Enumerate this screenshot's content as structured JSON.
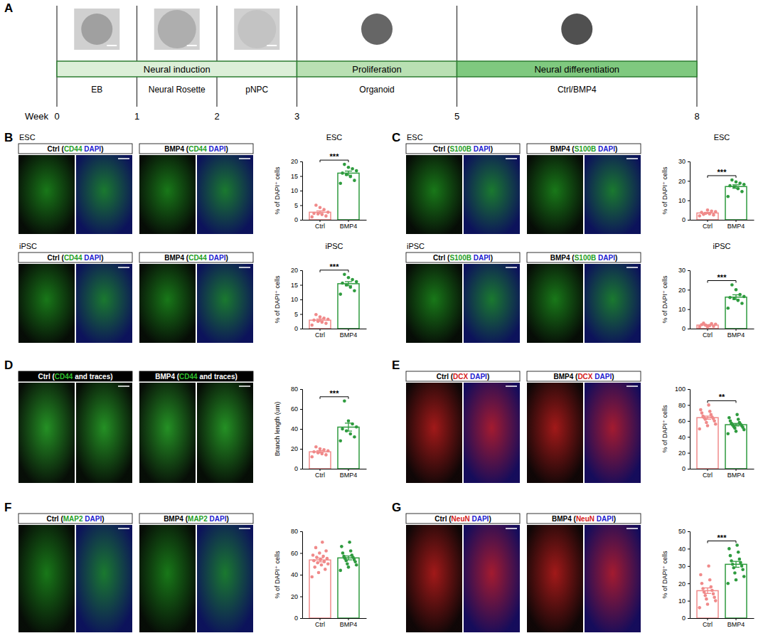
{
  "figure": {
    "timeline": {
      "panel": "A",
      "axis_label": "Week",
      "weeks": [
        0,
        1,
        2,
        3,
        5,
        8
      ],
      "xlim": [
        0,
        8
      ],
      "phases": [
        {
          "label": "Neural induction",
          "start": 0,
          "end": 3,
          "color": "#dcefd8"
        },
        {
          "label": "Proliferation",
          "start": 3,
          "end": 5,
          "color": "#b9e0b3"
        },
        {
          "label": "Neural differentiation",
          "start": 5,
          "end": 8,
          "color": "#7fc97f"
        }
      ],
      "stages": [
        {
          "label": "EB",
          "start": 0,
          "end": 1
        },
        {
          "label": "Neural Rosette",
          "start": 1,
          "end": 2
        },
        {
          "label": "pNPC",
          "start": 2,
          "end": 3
        },
        {
          "label": "Organoid",
          "start": 3,
          "end": 5
        },
        {
          "label": "Ctrl/BMP4",
          "start": 5,
          "end": 8
        }
      ]
    },
    "image_rows": [
      {
        "panel": "B",
        "label": "ESC",
        "headers": [
          {
            "color": "#ffffff",
            "segments": [
              {
                "text": "Ctrl (",
                "color": "#000000"
              },
              {
                "text": "CD44",
                "color": "#1f9e1f"
              },
              {
                "text": " DAPI",
                "color": "#2020d0"
              },
              {
                "text": ")",
                "color": "#000000"
              }
            ]
          },
          {
            "color": "#ffffff",
            "segments": [
              {
                "text": "BMP4 (",
                "color": "#000000"
              },
              {
                "text": "CD44",
                "color": "#1f9e1f"
              },
              {
                "text": " DAPI",
                "color": "#2020d0"
              },
              {
                "text": ")",
                "color": "#000000"
              }
            ]
          }
        ]
      },
      {
        "label": "iPSC",
        "headers": [
          {
            "color": "#ffffff",
            "segments": [
              {
                "text": "Ctrl (",
                "color": "#000000"
              },
              {
                "text": "CD44",
                "color": "#1f9e1f"
              },
              {
                "text": " DAPI",
                "color": "#2020d0"
              },
              {
                "text": ")",
                "color": "#000000"
              }
            ]
          },
          {
            "color": "#ffffff",
            "segments": [
              {
                "text": "BMP4 (",
                "color": "#000000"
              },
              {
                "text": "CD44",
                "color": "#1f9e1f"
              },
              {
                "text": " DAPI",
                "color": "#2020d0"
              },
              {
                "text": ")",
                "color": "#000000"
              }
            ]
          }
        ]
      },
      {
        "panel": "C",
        "label": "ESC",
        "headers": [
          {
            "color": "#ffffff",
            "segments": [
              {
                "text": "Ctrl (",
                "color": "#000000"
              },
              {
                "text": "S100B",
                "color": "#1f9e1f"
              },
              {
                "text": " DAPI",
                "color": "#2020d0"
              },
              {
                "text": ")",
                "color": "#000000"
              }
            ]
          },
          {
            "color": "#ffffff",
            "segments": [
              {
                "text": "BMP4 (",
                "color": "#000000"
              },
              {
                "text": "S100B",
                "color": "#1f9e1f"
              },
              {
                "text": " DAPI",
                "color": "#2020d0"
              },
              {
                "text": ")",
                "color": "#000000"
              }
            ]
          }
        ]
      },
      {
        "label": "iPSC",
        "headers": [
          {
            "color": "#ffffff",
            "segments": [
              {
                "text": "Ctrl (",
                "color": "#000000"
              },
              {
                "text": "S100B",
                "color": "#1f9e1f"
              },
              {
                "text": " DAPI",
                "color": "#2020d0"
              },
              {
                "text": ")",
                "color": "#000000"
              }
            ]
          },
          {
            "color": "#ffffff",
            "segments": [
              {
                "text": "BMP4 (",
                "color": "#000000"
              },
              {
                "text": "S100B",
                "color": "#1f9e1f"
              },
              {
                "text": " DAPI",
                "color": "#2020d0"
              },
              {
                "text": ")",
                "color": "#000000"
              }
            ]
          }
        ]
      },
      {
        "panel": "D",
        "headers": [
          {
            "color": "#000000",
            "segments": [
              {
                "text": "Ctrl (",
                "color": "#ffffff"
              },
              {
                "text": "CD44",
                "color": "#2fbf2f"
              },
              {
                "text": " and traces)",
                "color": "#ffffff"
              }
            ]
          },
          {
            "color": "#000000",
            "segments": [
              {
                "text": "BMP4 (",
                "color": "#ffffff"
              },
              {
                "text": "CD44",
                "color": "#2fbf2f"
              },
              {
                "text": " and traces)",
                "color": "#ffffff"
              }
            ]
          }
        ]
      },
      {
        "panel": "E",
        "headers": [
          {
            "color": "#ffffff",
            "segments": [
              {
                "text": "Ctrl (",
                "color": "#000000"
              },
              {
                "text": "DCX",
                "color": "#d62020"
              },
              {
                "text": " DAPI",
                "color": "#2020d0"
              },
              {
                "text": ")",
                "color": "#000000"
              }
            ]
          },
          {
            "color": "#ffffff",
            "segments": [
              {
                "text": "BMP4 (",
                "color": "#000000"
              },
              {
                "text": "DCX",
                "color": "#d62020"
              },
              {
                "text": " DAPI",
                "color": "#2020d0"
              },
              {
                "text": ")",
                "color": "#000000"
              }
            ]
          }
        ]
      },
      {
        "panel": "F",
        "headers": [
          {
            "color": "#ffffff",
            "segments": [
              {
                "text": "Ctrl (",
                "color": "#000000"
              },
              {
                "text": "MAP2",
                "color": "#1f9e1f"
              },
              {
                "text": " DAPI",
                "color": "#2020d0"
              },
              {
                "text": ")",
                "color": "#000000"
              }
            ]
          },
          {
            "color": "#ffffff",
            "segments": [
              {
                "text": "BMP4 (",
                "color": "#000000"
              },
              {
                "text": "MAP2",
                "color": "#1f9e1f"
              },
              {
                "text": " DAPI",
                "color": "#2020d0"
              },
              {
                "text": ")",
                "color": "#000000"
              }
            ]
          }
        ]
      },
      {
        "panel": "G",
        "headers": [
          {
            "color": "#ffffff",
            "segments": [
              {
                "text": "Ctrl (",
                "color": "#000000"
              },
              {
                "text": "NeuN",
                "color": "#d62020"
              },
              {
                "text": " DAPI",
                "color": "#2020d0"
              },
              {
                "text": ")",
                "color": "#000000"
              }
            ]
          },
          {
            "color": "#ffffff",
            "segments": [
              {
                "text": "BMP4 (",
                "color": "#000000"
              },
              {
                "text": "NeuN",
                "color": "#d62020"
              },
              {
                "text": " DAPI",
                "color": "#2020d0"
              },
              {
                "text": ")",
                "color": "#000000"
              }
            ]
          }
        ]
      }
    ]
  },
  "chart_data": [
    {
      "type": "bar",
      "title": "ESC",
      "y_label": "% of DAPI⁺ cells",
      "categories": [
        "Ctrl",
        "BMP4"
      ],
      "colors": [
        "#f08a8a",
        "#2e9b3e"
      ],
      "values": [
        2.6,
        16.0
      ],
      "errors": [
        0.45,
        0.7
      ],
      "points": [
        [
          1.0,
          1.3,
          1.8,
          2.0,
          2.2,
          2.6,
          3.5,
          4.2,
          5.0
        ],
        [
          12.5,
          13.5,
          14.8,
          15.5,
          16.0,
          16.8,
          17.5,
          18.0,
          19.0
        ]
      ],
      "ylim": [
        0,
        20
      ],
      "yticks": [
        0,
        5,
        10,
        15,
        20
      ],
      "significance": "***"
    },
    {
      "type": "bar",
      "title": "iPSC",
      "y_label": "% of DAPI⁺ cells",
      "categories": [
        "Ctrl",
        "BMP4"
      ],
      "colors": [
        "#f08a8a",
        "#2e9b3e"
      ],
      "values": [
        2.9,
        15.4
      ],
      "errors": [
        0.4,
        0.7
      ],
      "points": [
        [
          1.2,
          1.8,
          2.2,
          2.5,
          2.9,
          3.2,
          3.6,
          4.0,
          4.8
        ],
        [
          11.8,
          13.0,
          14.2,
          15.0,
          15.6,
          16.1,
          16.8,
          17.5,
          18.6
        ]
      ],
      "ylim": [
        0,
        20
      ],
      "yticks": [
        0,
        5,
        10,
        15,
        20
      ],
      "significance": "***"
    },
    {
      "type": "bar",
      "title": "ESC",
      "y_label": "% of DAPI⁺ cells",
      "categories": [
        "Ctrl",
        "BMP4"
      ],
      "colors": [
        "#f08a8a",
        "#2e9b3e"
      ],
      "values": [
        3.5,
        17.1
      ],
      "errors": [
        0.35,
        0.9
      ],
      "points": [
        [
          2.0,
          2.5,
          3.0,
          3.3,
          3.8,
          4.2,
          4.5,
          5.0,
          2.8
        ],
        [
          12.0,
          14.5,
          16.0,
          17.0,
          17.5,
          18.2,
          18.8,
          19.5,
          20.5
        ]
      ],
      "ylim": [
        0,
        30
      ],
      "yticks": [
        0,
        10,
        20,
        30
      ],
      "significance": "***"
    },
    {
      "type": "bar",
      "title": "iPSC",
      "y_label": "% of DAPI⁺ cells",
      "categories": [
        "Ctrl",
        "BMP4"
      ],
      "colors": [
        "#f08a8a",
        "#2e9b3e"
      ],
      "values": [
        1.8,
        16.2
      ],
      "errors": [
        0.25,
        1.2
      ],
      "points": [
        [
          0.8,
          1.2,
          1.5,
          1.8,
          2.0,
          2.3,
          2.5,
          1.0,
          2.8
        ],
        [
          10.5,
          13.0,
          14.5,
          15.5,
          16.0,
          16.5,
          17.5,
          20.0,
          22.5
        ]
      ],
      "ylim": [
        0,
        30
      ],
      "yticks": [
        0,
        10,
        20,
        30
      ],
      "significance": "***"
    },
    {
      "type": "bar",
      "y_label": "Branch length (um)",
      "categories": [
        "Ctrl",
        "BMP4"
      ],
      "colors": [
        "#f08a8a",
        "#2e9b3e"
      ],
      "values": [
        17.0,
        41.8
      ],
      "errors": [
        1.1,
        4.0
      ],
      "points": [
        [
          12,
          14,
          15,
          16,
          17,
          18,
          19,
          20,
          22
        ],
        [
          28,
          32,
          35,
          38,
          40,
          42,
          45,
          48,
          68
        ]
      ],
      "ylim": [
        0,
        80
      ],
      "yticks": [
        0,
        20,
        40,
        60,
        80
      ],
      "significance": "***"
    },
    {
      "type": "bar",
      "y_label": "% of DAPI⁺ cells",
      "categories": [
        "Ctrl",
        "BMP4"
      ],
      "colors": [
        "#f08a8a",
        "#2e9b3e"
      ],
      "values": [
        64.1,
        55.3
      ],
      "errors": [
        2.0,
        1.6
      ],
      "points": [
        [
          50,
          54,
          56,
          58,
          60,
          62,
          63,
          64,
          65,
          66,
          68,
          70,
          72,
          74,
          80
        ],
        [
          44,
          47,
          49,
          51,
          52,
          53,
          54,
          55,
          56,
          57,
          58,
          60,
          62,
          64,
          68
        ]
      ],
      "ylim": [
        0,
        100
      ],
      "yticks": [
        0,
        20,
        40,
        60,
        80,
        100
      ],
      "significance": "**"
    },
    {
      "type": "bar",
      "y_label": "% of DAPI⁺ cells",
      "categories": [
        "Ctrl",
        "BMP4"
      ],
      "colors": [
        "#f08a8a",
        "#2e9b3e"
      ],
      "values": [
        53.6,
        55.5
      ],
      "errors": [
        1.8,
        1.8
      ],
      "points": [
        [
          38,
          42,
          45,
          47,
          49,
          50,
          51,
          52,
          53,
          54,
          55,
          56,
          57,
          58,
          60,
          62,
          65,
          70
        ],
        [
          44,
          47,
          49,
          50,
          52,
          53,
          54,
          55,
          56,
          57,
          58,
          60,
          62,
          66,
          70
        ]
      ],
      "ylim": [
        0,
        80
      ],
      "yticks": [
        0,
        20,
        40,
        60,
        80
      ]
    },
    {
      "type": "bar",
      "y_label": "% of DAPI⁺ cells",
      "categories": [
        "Ctrl",
        "BMP4"
      ],
      "colors": [
        "#f08a8a",
        "#2e9b3e"
      ],
      "values": [
        15.8,
        31.0
      ],
      "errors": [
        1.6,
        1.7
      ],
      "points": [
        [
          6,
          8,
          10,
          11,
          12,
          13,
          14,
          15,
          16,
          17,
          18,
          20,
          22,
          25,
          30
        ],
        [
          20,
          22,
          24,
          26,
          28,
          29,
          30,
          31,
          32,
          33,
          34,
          36,
          38,
          40,
          42
        ]
      ],
      "ylim": [
        0,
        50
      ],
      "yticks": [
        0,
        10,
        20,
        30,
        40,
        50
      ],
      "significance": "***"
    }
  ]
}
